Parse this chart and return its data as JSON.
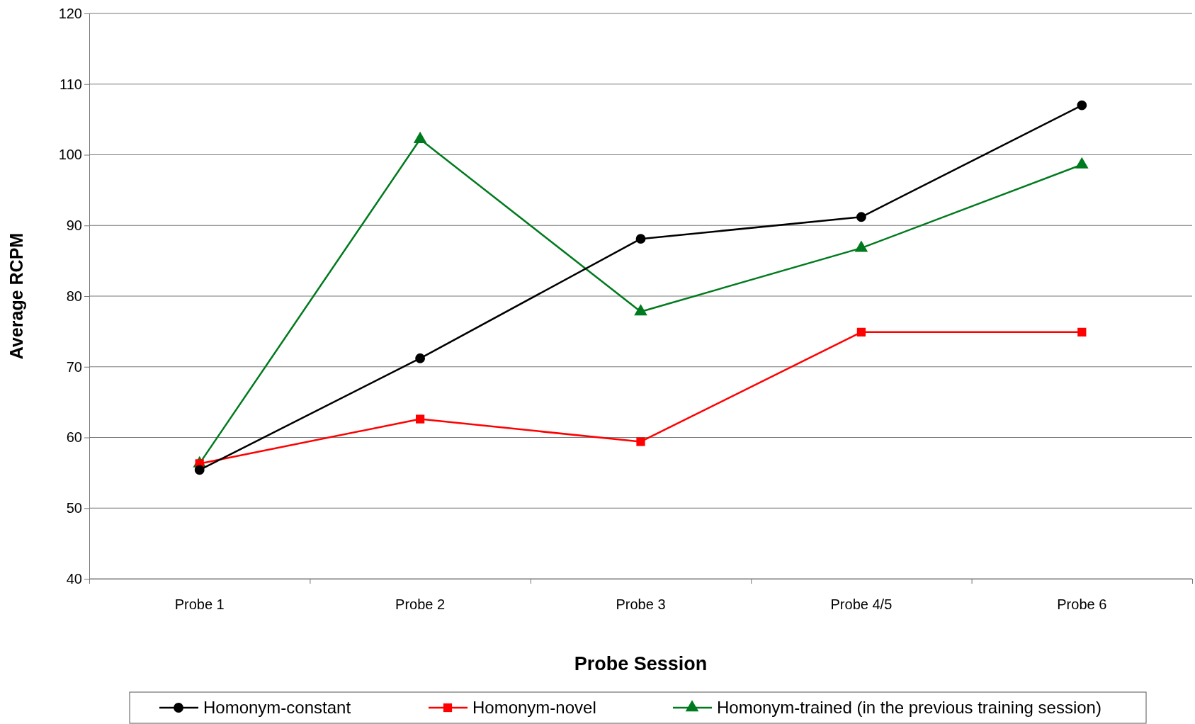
{
  "chart_data": {
    "type": "line",
    "xlabel": "Probe Session",
    "ylabel": "Average RCPM",
    "categories": [
      "Probe 1",
      "Probe 2",
      "Probe 3",
      "Probe 4/5",
      "Probe 6"
    ],
    "series": [
      {
        "name": "Homonym-constant",
        "color": "#000000",
        "marker": "circle",
        "values": [
          55.4,
          71.2,
          88.1,
          91.2,
          107
        ]
      },
      {
        "name": "Homonym-novel",
        "color": "#ff0000",
        "marker": "square",
        "values": [
          56.3,
          62.6,
          59.4,
          74.9,
          74.9
        ]
      },
      {
        "name": "Homonym-trained (in the previous training session)",
        "color": "#007a1e",
        "marker": "triangle",
        "values": [
          56.3,
          102.2,
          77.8,
          86.8,
          98.6
        ]
      }
    ],
    "ylim": [
      40,
      120
    ],
    "yticks": [
      40,
      50,
      60,
      70,
      80,
      90,
      100,
      110,
      120
    ],
    "grid": "y",
    "legend": "bottom",
    "line_style": "solid"
  }
}
